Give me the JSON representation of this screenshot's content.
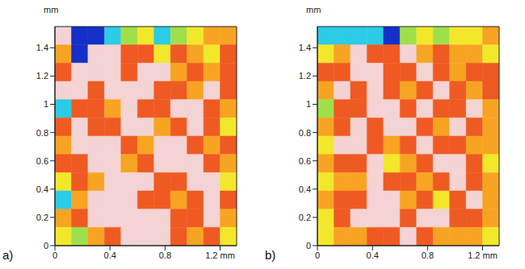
{
  "chart_data": [
    {
      "type": "heatmap",
      "title": "a)",
      "ylabel": "mm",
      "xlim": [
        0,
        1.32
      ],
      "ylim": [
        0,
        1.55
      ],
      "xticks": [
        0,
        0.4,
        0.8,
        {
          "value": 1.2,
          "label": "1.2 mm"
        }
      ],
      "yticks": [
        0,
        0.2,
        0.4,
        0.6,
        0.8,
        1,
        1.2,
        1.4
      ],
      "grid": false,
      "cells": [
        [
          6,
          0,
          0,
          1,
          2,
          3,
          1,
          2,
          3,
          4,
          4
        ],
        [
          4,
          0,
          6,
          6,
          5,
          5,
          3,
          5,
          4,
          3,
          5
        ],
        [
          5,
          6,
          6,
          6,
          5,
          6,
          6,
          4,
          5,
          4,
          5
        ],
        [
          6,
          6,
          5,
          6,
          6,
          6,
          5,
          5,
          4,
          6,
          5
        ],
        [
          1,
          5,
          5,
          4,
          6,
          5,
          5,
          6,
          6,
          5,
          4
        ],
        [
          5,
          6,
          5,
          5,
          6,
          6,
          4,
          5,
          6,
          5,
          3
        ],
        [
          4,
          6,
          6,
          6,
          5,
          4,
          6,
          6,
          5,
          4,
          5
        ],
        [
          5,
          5,
          6,
          6,
          4,
          5,
          6,
          6,
          6,
          5,
          4
        ],
        [
          3,
          5,
          4,
          6,
          6,
          6,
          5,
          5,
          6,
          6,
          3
        ],
        [
          1,
          4,
          6,
          6,
          6,
          5,
          5,
          4,
          5,
          6,
          5
        ],
        [
          4,
          5,
          6,
          6,
          6,
          6,
          6,
          5,
          5,
          6,
          4
        ],
        [
          3,
          2,
          4,
          5,
          6,
          6,
          6,
          5,
          4,
          5,
          3
        ]
      ]
    },
    {
      "type": "heatmap",
      "title": "b)",
      "ylabel": "mm",
      "xlim": [
        0,
        1.32
      ],
      "ylim": [
        0,
        1.55
      ],
      "xticks": [
        0,
        0.4,
        0.8,
        {
          "value": 1.2,
          "label": "1.2 mm"
        }
      ],
      "yticks": [
        0,
        0.2,
        0.4,
        0.6,
        0.8,
        1,
        1.2,
        1.4
      ],
      "grid": false,
      "cells": [
        [
          1,
          1,
          1,
          1,
          0,
          2,
          3,
          2,
          3,
          3,
          4
        ],
        [
          3,
          4,
          6,
          5,
          5,
          6,
          4,
          5,
          4,
          4,
          3
        ],
        [
          5,
          5,
          6,
          6,
          5,
          5,
          6,
          5,
          4,
          5,
          5
        ],
        [
          4,
          6,
          5,
          6,
          5,
          4,
          5,
          6,
          5,
          4,
          5
        ],
        [
          2,
          5,
          5,
          6,
          6,
          5,
          6,
          5,
          5,
          6,
          4
        ],
        [
          4,
          5,
          6,
          5,
          6,
          6,
          5,
          4,
          6,
          5,
          4
        ],
        [
          3,
          6,
          6,
          5,
          4,
          5,
          6,
          5,
          5,
          4,
          4
        ],
        [
          4,
          5,
          5,
          6,
          3,
          4,
          5,
          6,
          6,
          5,
          3
        ],
        [
          3,
          4,
          4,
          6,
          5,
          5,
          4,
          5,
          6,
          5,
          4
        ],
        [
          4,
          5,
          5,
          6,
          6,
          4,
          5,
          3,
          5,
          6,
          4
        ],
        [
          3,
          5,
          6,
          6,
          6,
          5,
          6,
          6,
          5,
          5,
          4
        ],
        [
          3,
          4,
          4,
          5,
          5,
          6,
          5,
          4,
          4,
          4,
          3
        ]
      ]
    }
  ]
}
